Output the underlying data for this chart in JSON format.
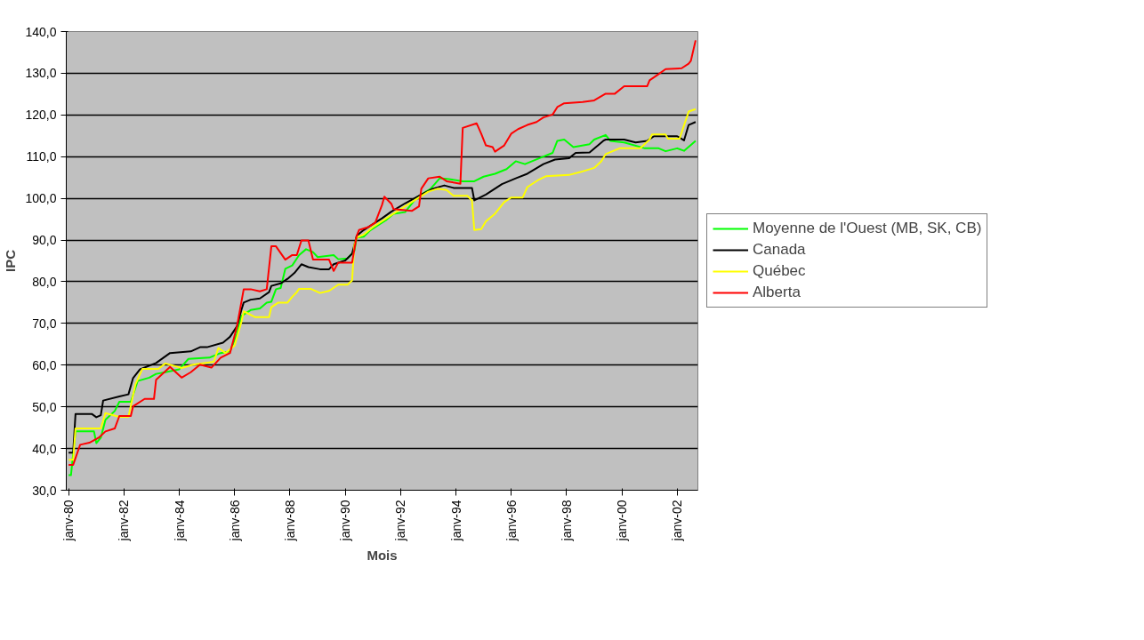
{
  "chart_data": {
    "type": "line",
    "xlabel": "Mois",
    "ylabel": "IPC",
    "xlim": [
      "1979-12",
      "2002-10"
    ],
    "xticks": [
      {
        "value": "1980-01",
        "label": "janv-80"
      },
      {
        "value": "1982-01",
        "label": "janv-82"
      },
      {
        "value": "1984-01",
        "label": "janv-84"
      },
      {
        "value": "1986-01",
        "label": "janv-86"
      },
      {
        "value": "1988-01",
        "label": "janv-88"
      },
      {
        "value": "1990-01",
        "label": "janv-90"
      },
      {
        "value": "1992-01",
        "label": "janv-92"
      },
      {
        "value": "1994-01",
        "label": "janv-94"
      },
      {
        "value": "1996-01",
        "label": "janv-96"
      },
      {
        "value": "1998-01",
        "label": "janv-98"
      },
      {
        "value": "2000-01",
        "label": "janv-00"
      },
      {
        "value": "2002-01",
        "label": "janv-02"
      }
    ],
    "ylim": [
      30,
      140
    ],
    "yticks": [
      {
        "value": 30,
        "label": "30,0"
      },
      {
        "value": 40,
        "label": "40,0"
      },
      {
        "value": 50,
        "label": "50,0"
      },
      {
        "value": 60,
        "label": "60,0"
      },
      {
        "value": 70,
        "label": "70,0"
      },
      {
        "value": 80,
        "label": "80,0"
      },
      {
        "value": 90,
        "label": "90,0"
      },
      {
        "value": 100,
        "label": "100,0"
      },
      {
        "value": 110,
        "label": "110,0"
      },
      {
        "value": 120,
        "label": "120,0"
      },
      {
        "value": 130,
        "label": "130,0"
      },
      {
        "value": 140,
        "label": "140,0"
      }
    ],
    "grid": "y",
    "legend": "right",
    "marker": "none",
    "line_style": "solid",
    "series": [
      {
        "name": "Moyenne de l'Ouest (MB, SK, CB)",
        "color": "#00ff00",
        "x": [
          "1980-01",
          "1980-02",
          "1980-04",
          "1980-12",
          "1981-01",
          "1981-03",
          "1981-05",
          "1981-09",
          "1981-11",
          "1982-04",
          "1982-07",
          "1982-12",
          "1983-03",
          "1983-07",
          "1984-01",
          "1984-05",
          "1985-02",
          "1985-07",
          "1985-11",
          "1986-02",
          "1986-04",
          "1986-08",
          "1986-12",
          "1987-03",
          "1987-05",
          "1987-07",
          "1987-09",
          "1987-11",
          "1988-02",
          "1988-05",
          "1988-08",
          "1988-11",
          "1989-01",
          "1989-08",
          "1989-10",
          "1990-02",
          "1990-05",
          "1990-06",
          "1990-09",
          "1990-12",
          "1991-07",
          "1991-10",
          "1992-03",
          "1992-08",
          "1993-02",
          "1993-06",
          "1993-10",
          "1994-04",
          "1994-09",
          "1995-01",
          "1995-06",
          "1995-11",
          "1996-03",
          "1996-07",
          "1997-02",
          "1997-07",
          "1997-09",
          "1997-12",
          "1998-04",
          "1998-11",
          "1999-01",
          "1999-06",
          "1999-08",
          "2000-02",
          "2000-11",
          "2001-05",
          "2001-08",
          "2002-01",
          "2002-04",
          "2002-09"
        ],
        "values": [
          33.6,
          33.6,
          44.1,
          44.1,
          41.3,
          42.6,
          46.9,
          49.0,
          51.2,
          51.2,
          56.2,
          57.0,
          57.9,
          58.3,
          59.0,
          61.5,
          61.8,
          62.9,
          63.3,
          67.5,
          71.8,
          73.2,
          73.6,
          75.0,
          75.2,
          78.2,
          78.5,
          83.1,
          83.9,
          86.4,
          87.8,
          87.1,
          85.9,
          86.4,
          85.4,
          85.6,
          87.4,
          90.6,
          90.8,
          92.4,
          94.9,
          96.3,
          96.7,
          100.2,
          102.3,
          104.8,
          104.6,
          104.1,
          104.1,
          105.2,
          105.9,
          107.0,
          108.9,
          108.2,
          109.8,
          110.9,
          113.8,
          114.1,
          112.3,
          113.0,
          114.1,
          115.2,
          113.8,
          113.4,
          112.0,
          112.0,
          111.3,
          112.0,
          111.4,
          113.8
        ]
      },
      {
        "name": "Canada",
        "color": "#000000",
        "x": [
          "1980-01",
          "1980-03",
          "1980-04",
          "1980-11",
          "1981-01",
          "1981-03",
          "1981-04",
          "1981-11",
          "1982-03",
          "1982-05",
          "1982-08",
          "1983-03",
          "1983-09",
          "1984-06",
          "1984-10",
          "1985-01",
          "1985-08",
          "1985-11",
          "1986-02",
          "1986-04",
          "1986-05",
          "1986-08",
          "1986-12",
          "1987-04",
          "1987-05",
          "1987-09",
          "1987-12",
          "1988-03",
          "1988-06",
          "1988-09",
          "1989-02",
          "1989-06",
          "1989-08",
          "1990-01",
          "1990-04",
          "1990-05",
          "1990-06",
          "1990-09",
          "1991-01",
          "1991-05",
          "1991-09",
          "1992-03",
          "1992-10",
          "1993-03",
          "1993-08",
          "1993-12",
          "1994-08",
          "1994-09",
          "1995-02",
          "1995-09",
          "1996-03",
          "1996-08",
          "1997-03",
          "1997-08",
          "1998-02",
          "1998-05",
          "1998-11",
          "1999-05",
          "1999-06",
          "2000-02",
          "2000-07",
          "2000-12",
          "2001-03",
          "2002-01",
          "2002-04",
          "2002-06",
          "2002-09"
        ],
        "values": [
          39.0,
          39.0,
          48.3,
          48.3,
          47.5,
          48.0,
          51.5,
          52.5,
          53.0,
          56.9,
          59.0,
          60.5,
          62.9,
          63.3,
          64.3,
          64.3,
          65.4,
          66.8,
          69.3,
          73.3,
          75.0,
          75.7,
          76.0,
          77.5,
          79.0,
          79.6,
          80.7,
          82.1,
          84.2,
          83.5,
          83.0,
          83.0,
          84.2,
          85.1,
          86.7,
          88.8,
          91.0,
          92.4,
          93.8,
          95.2,
          96.8,
          98.8,
          100.9,
          102.3,
          103.1,
          102.5,
          102.5,
          99.5,
          100.9,
          103.4,
          104.8,
          105.9,
          108.2,
          109.3,
          109.6,
          110.9,
          111.0,
          113.8,
          114.1,
          114.1,
          113.4,
          113.8,
          114.9,
          114.9,
          113.9,
          117.6,
          118.3
        ]
      },
      {
        "name": "Québec",
        "color": "#ffff00",
        "x": [
          "1980-01",
          "1980-03",
          "1980-04",
          "1981-03",
          "1981-05",
          "1981-11",
          "1982-03",
          "1982-06",
          "1982-09",
          "1983-04",
          "1983-07",
          "1984-02",
          "1984-07",
          "1985-04",
          "1985-06",
          "1985-09",
          "1986-01",
          "1986-04",
          "1986-05",
          "1986-10",
          "1987-04",
          "1987-05",
          "1987-08",
          "1987-12",
          "1988-02",
          "1988-04",
          "1988-05",
          "1988-10",
          "1989-02",
          "1989-06",
          "1989-10",
          "1990-02",
          "1990-04",
          "1990-05",
          "1990-06",
          "1990-09",
          "1991-01",
          "1991-06",
          "1991-09",
          "1992-03",
          "1992-09",
          "1993-01",
          "1993-05",
          "1993-09",
          "1993-12",
          "1994-06",
          "1994-08",
          "1994-09",
          "1994-12",
          "1995-02",
          "1995-06",
          "1995-10",
          "1996-01",
          "1996-06",
          "1996-08",
          "1997-01",
          "1997-04",
          "1998-02",
          "1998-07",
          "1999-01",
          "1999-04",
          "1999-06",
          "1999-12",
          "2000-09",
          "2001-01",
          "2001-02",
          "2001-08",
          "2001-09",
          "2002-02",
          "2002-06",
          "2002-09"
        ],
        "values": [
          37.3,
          37.3,
          44.8,
          44.8,
          48.5,
          47.6,
          47.6,
          55.4,
          59.1,
          59.1,
          60.4,
          59.3,
          60.1,
          60.8,
          64.1,
          62.9,
          64.7,
          70.4,
          72.9,
          71.5,
          71.5,
          73.9,
          75.0,
          75.0,
          76.4,
          77.5,
          78.3,
          78.3,
          77.3,
          77.8,
          79.3,
          79.3,
          80.3,
          88.8,
          90.6,
          91.3,
          93.1,
          94.9,
          96.0,
          98.1,
          100.2,
          101.6,
          102.3,
          102.0,
          100.6,
          100.6,
          99.5,
          92.4,
          92.6,
          94.5,
          96.3,
          99.1,
          100.2,
          100.2,
          102.7,
          104.5,
          105.3,
          105.6,
          106.3,
          107.3,
          108.8,
          110.6,
          112.0,
          112.0,
          114.1,
          115.3,
          115.3,
          114.3,
          114.3,
          120.8,
          121.4
        ]
      },
      {
        "name": "Alberta",
        "color": "#ff0000",
        "x": [
          "1980-01",
          "1980-03",
          "1980-06",
          "1980-10",
          "1981-02",
          "1981-05",
          "1981-09",
          "1981-11",
          "1982-04",
          "1982-05",
          "1982-10",
          "1983-02",
          "1983-03",
          "1983-09",
          "1984-02",
          "1984-06",
          "1984-10",
          "1985-03",
          "1985-07",
          "1985-11",
          "1986-02",
          "1986-05",
          "1986-08",
          "1986-12",
          "1987-03",
          "1987-05",
          "1987-07",
          "1987-11",
          "1988-02",
          "1988-04",
          "1988-06",
          "1988-09",
          "1988-11",
          "1989-06",
          "1989-08",
          "1989-10",
          "1990-04",
          "1990-06",
          "1990-07",
          "1990-11",
          "1991-02",
          "1991-05",
          "1991-06",
          "1991-09",
          "1991-10",
          "1992-06",
          "1992-09",
          "1992-10",
          "1993-01",
          "1993-06",
          "1993-09",
          "1994-03",
          "1994-04",
          "1994-10",
          "1994-12",
          "1995-02",
          "1995-05",
          "1995-06",
          "1995-10",
          "1996-01",
          "1996-04",
          "1996-08",
          "1996-12",
          "1997-03",
          "1997-07",
          "1997-09",
          "1997-12",
          "1998-08",
          "1999-01",
          "1999-06",
          "1999-10",
          "2000-02",
          "2000-12",
          "2001-01",
          "2001-05",
          "2001-08",
          "2002-03",
          "2002-06",
          "2002-07",
          "2002-09"
        ],
        "values": [
          36.1,
          36.1,
          40.9,
          41.4,
          42.6,
          44.1,
          44.8,
          47.8,
          47.8,
          50.1,
          51.9,
          51.9,
          56.5,
          59.6,
          57.0,
          58.3,
          60.1,
          59.4,
          61.8,
          62.9,
          69.3,
          78.2,
          78.2,
          77.7,
          78.2,
          88.5,
          88.5,
          85.3,
          86.4,
          86.4,
          89.9,
          89.9,
          85.3,
          85.3,
          82.6,
          84.6,
          84.6,
          91.0,
          92.4,
          93.1,
          94.2,
          98.4,
          100.4,
          98.7,
          97.4,
          97.0,
          98.1,
          102.3,
          104.8,
          105.2,
          104.1,
          103.5,
          116.9,
          118.0,
          115.5,
          112.7,
          112.3,
          111.2,
          112.7,
          115.5,
          116.6,
          117.6,
          118.3,
          119.4,
          120.1,
          121.9,
          122.8,
          123.1,
          123.5,
          125.1,
          125.1,
          126.9,
          126.9,
          128.3,
          129.8,
          131.0,
          131.2,
          132.3,
          133.0,
          137.9
        ]
      }
    ]
  }
}
